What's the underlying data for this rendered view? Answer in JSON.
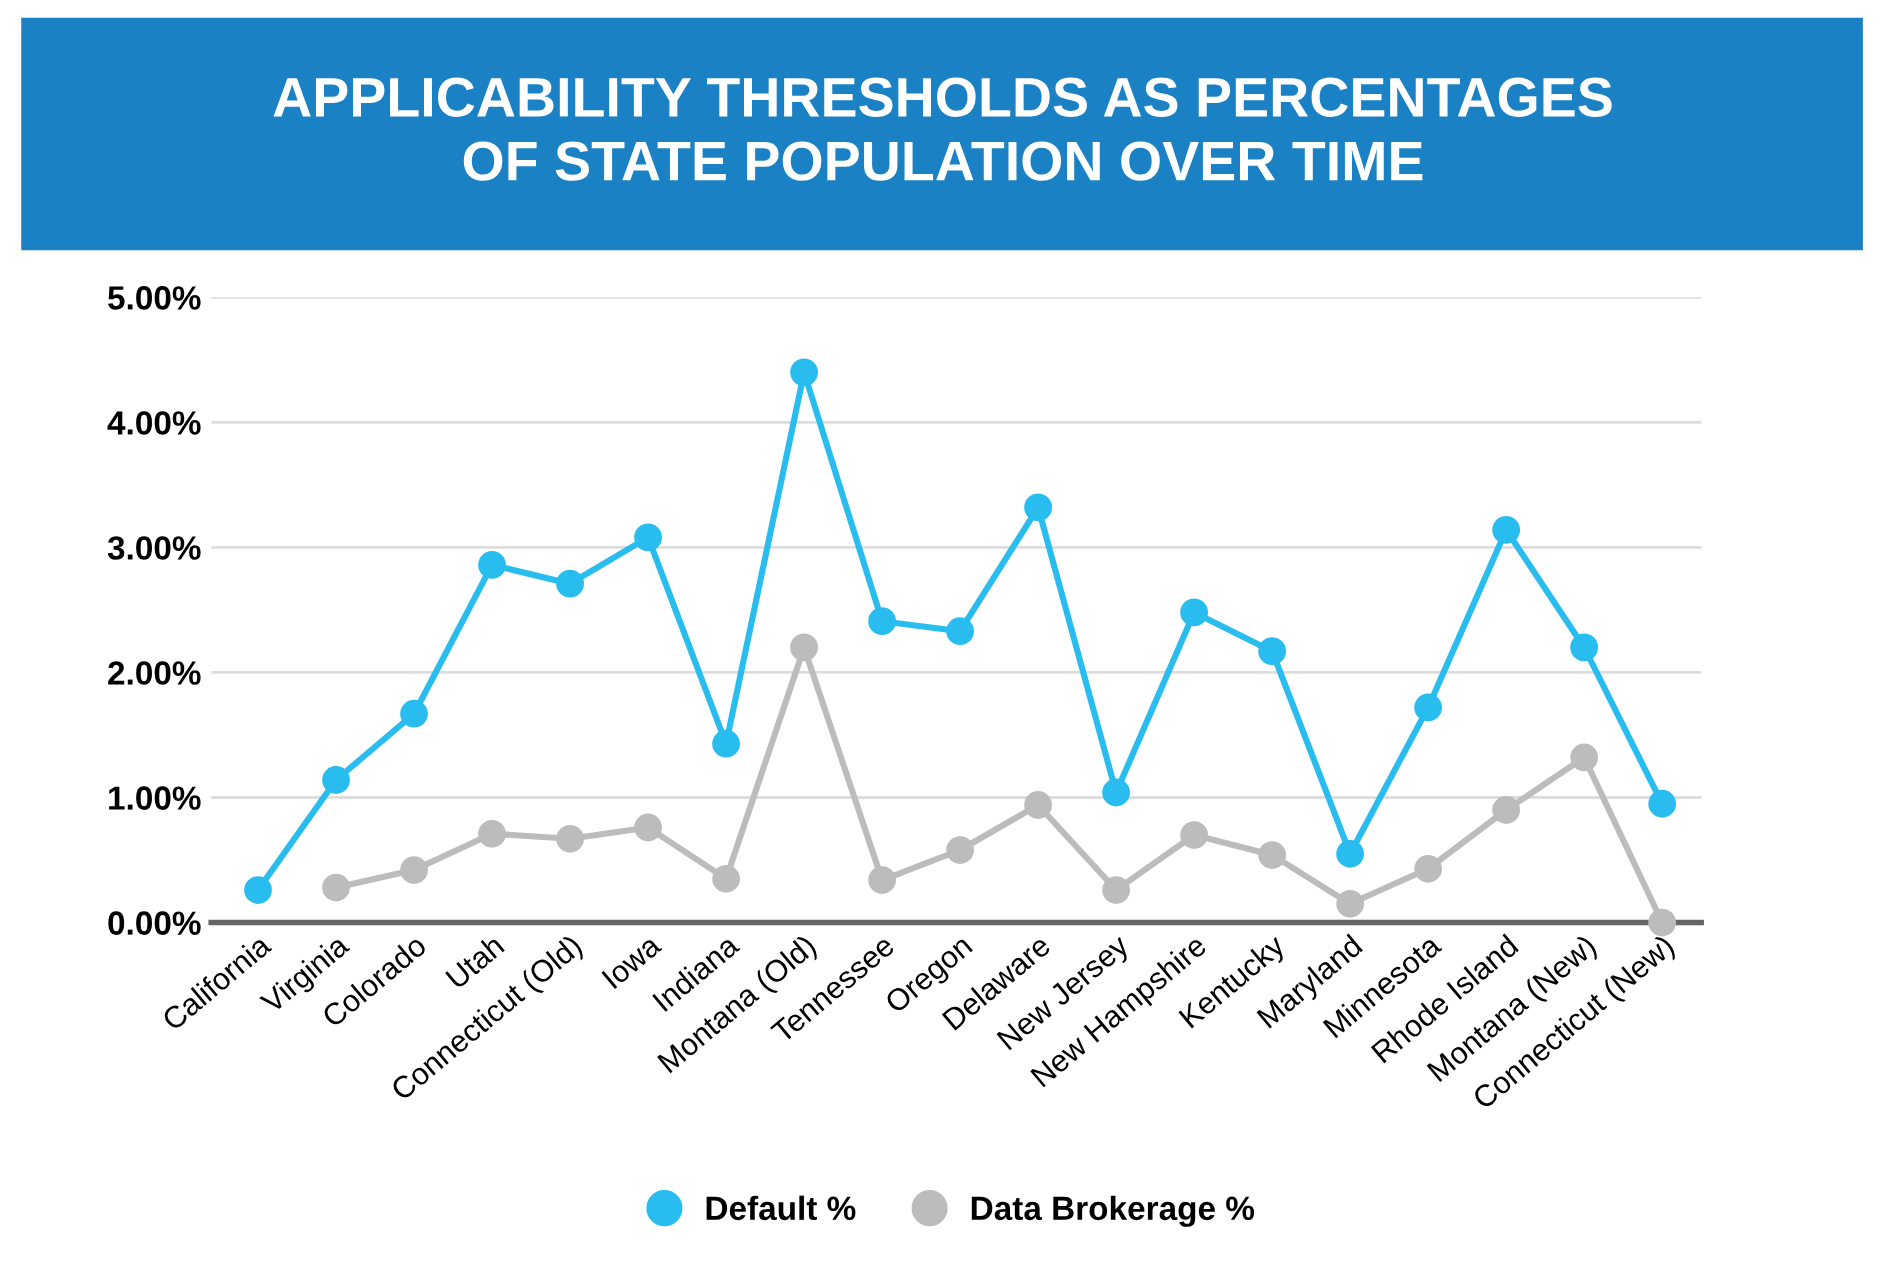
{
  "chart_data": {
    "type": "line",
    "title": "APPLICABILITY THRESHOLDS AS PERCENTAGES\nOF STATE POPULATION OVER TIME",
    "categories": [
      "California",
      "Virginia",
      "Colorado",
      "Utah",
      "Connecticut (Old)",
      "Iowa",
      "Indiana",
      "Montana (Old)",
      "Tennessee",
      "Oregon",
      "Delaware",
      "New Jersey",
      "New Hampshire",
      "Kentucky",
      "Maryland",
      "Minnesota",
      "Rhode Island",
      "Montana (New)",
      "Connecticut (New)"
    ],
    "series": [
      {
        "name": "Default %",
        "color": "#29bdef",
        "values": [
          0.26,
          1.14,
          1.67,
          2.86,
          2.71,
          3.08,
          1.43,
          4.4,
          2.41,
          2.33,
          3.32,
          1.04,
          2.48,
          2.17,
          0.55,
          1.72,
          3.14,
          2.2,
          0.95
        ]
      },
      {
        "name": "Data Brokerage %",
        "color": "#bcbcbc",
        "values": [
          null,
          0.28,
          0.42,
          0.71,
          0.67,
          0.76,
          0.35,
          2.2,
          0.34,
          0.58,
          0.94,
          0.26,
          0.7,
          0.54,
          0.15,
          0.43,
          0.9,
          1.32,
          0.0
        ]
      }
    ],
    "ylim": [
      0,
      5
    ],
    "yticks": [
      {
        "value": 0,
        "label": "0.00%"
      },
      {
        "value": 1,
        "label": "1.00%"
      },
      {
        "value": 2,
        "label": "2.00%"
      },
      {
        "value": 3,
        "label": "3.00%"
      },
      {
        "value": 4,
        "label": "4.00%"
      },
      {
        "value": 5,
        "label": "5.00%"
      }
    ],
    "grid": "y",
    "legend": "bottom",
    "marker": "circle",
    "line_style": "solid"
  }
}
